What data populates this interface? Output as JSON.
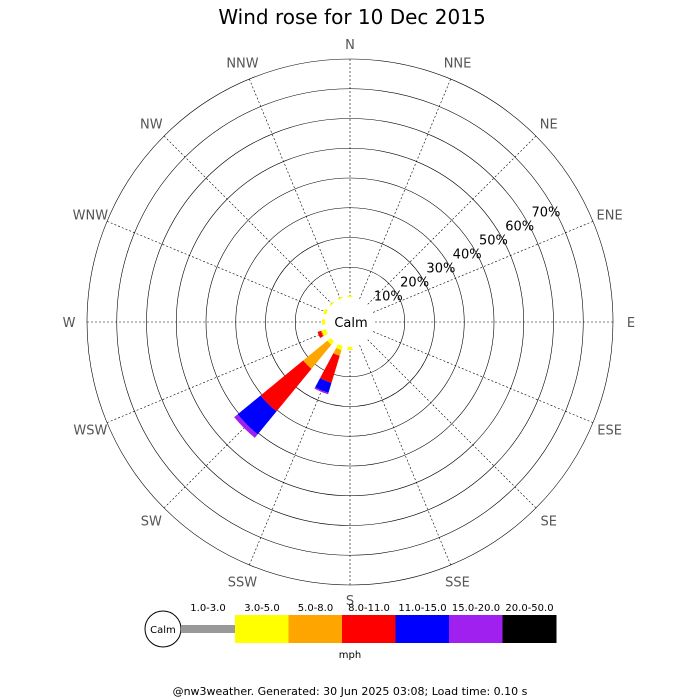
{
  "chart_data": {
    "type": "windrose",
    "title": "Wind rose for 10 Dec 2015",
    "directions": [
      "N",
      "NNE",
      "NE",
      "ENE",
      "E",
      "ESE",
      "SE",
      "SSE",
      "S",
      "SSW",
      "SW",
      "WSW",
      "W",
      "WNW",
      "NW",
      "NNW"
    ],
    "percent_ticks": [
      "10%",
      "20%",
      "30%",
      "40%",
      "50%",
      "60%",
      "70%"
    ],
    "percent_max": 80,
    "calm_label": "Calm",
    "unit": "mph",
    "speed_bins": [
      {
        "label": "1.0-3.0",
        "color": "#999999"
      },
      {
        "label": "3.0-5.0",
        "color": "#ffff00"
      },
      {
        "label": "5.0-8.0",
        "color": "#ffa500"
      },
      {
        "label": "8.0-11.0",
        "color": "#ff0000"
      },
      {
        "label": "11.0-15.0",
        "color": "#0000ff"
      },
      {
        "label": "15.0-20.0",
        "color": "#a020f0"
      },
      {
        "label": "20.0-50.0",
        "color": "#000000"
      }
    ],
    "series": [
      {
        "direction": "N",
        "values": [
          0,
          0.5,
          0,
          0,
          0,
          0,
          0
        ]
      },
      {
        "direction": "NNW",
        "values": [
          0,
          0.5,
          0,
          0,
          0,
          0,
          0
        ]
      },
      {
        "direction": "NW",
        "values": [
          0,
          0.5,
          0,
          0,
          0,
          0,
          0
        ]
      },
      {
        "direction": "WNW",
        "values": [
          0,
          1.0,
          0,
          0,
          0,
          0,
          0
        ]
      },
      {
        "direction": "W",
        "values": [
          0,
          1.0,
          0,
          0,
          0,
          0,
          0
        ]
      },
      {
        "direction": "WSW",
        "values": [
          0,
          1.5,
          0.3,
          1.2,
          0,
          0,
          0
        ]
      },
      {
        "direction": "SW",
        "values": [
          0,
          1.5,
          10.5,
          18.5,
          10.0,
          1.5,
          0
        ]
      },
      {
        "direction": "SSW",
        "values": [
          0,
          1.5,
          2.0,
          9.5,
          3.5,
          0.5,
          0
        ]
      },
      {
        "direction": "S",
        "values": [
          0,
          1.0,
          0,
          0,
          0,
          0,
          0
        ]
      }
    ]
  },
  "footer": "@nw3weather. Generated: 30 Jun 2025 03:08; Load time: 0.10 s"
}
